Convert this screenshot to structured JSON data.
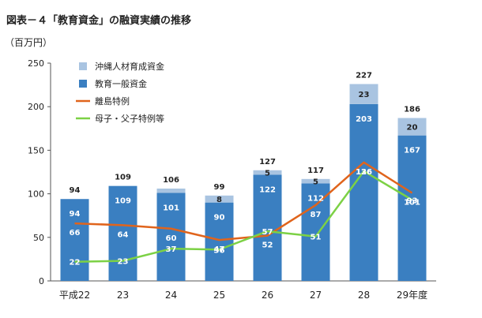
{
  "chart_data": {
    "type": "bar",
    "title": "図表－４「教育資金」の融資実績の推移",
    "ylabel": "（百万円）",
    "xlabel": "",
    "ylim": [
      0,
      250
    ],
    "yticks": [
      0,
      50,
      100,
      150,
      200,
      250
    ],
    "grid": false,
    "legend_position": "top-left",
    "categories": [
      "平成22",
      "23",
      "24",
      "25",
      "26",
      "27",
      "28",
      "29年度"
    ],
    "series": [
      {
        "name": "沖縄人材育成資金",
        "kind": "bar",
        "stack": "total",
        "color": "#a9c4e1",
        "values": [
          0,
          0,
          5,
          8,
          5,
          5,
          23,
          20
        ],
        "labels": [
          "",
          "",
          "",
          "8",
          "5",
          "5",
          "23",
          "20"
        ]
      },
      {
        "name": "教育一般資金",
        "kind": "bar",
        "stack": "total",
        "color": "#3a7fc1",
        "values": [
          94,
          109,
          101,
          90,
          122,
          112,
          203,
          167
        ],
        "labels": [
          "94",
          "109",
          "101",
          "90",
          "122",
          "112",
          "203",
          "167"
        ]
      },
      {
        "name": "離島特例",
        "kind": "line",
        "color": "#e0641c",
        "values": [
          66,
          64,
          60,
          47,
          52,
          87,
          136,
          101
        ],
        "labels": [
          "66",
          "64",
          "60",
          "47",
          "52",
          "87",
          "136",
          "101"
        ]
      },
      {
        "name": "母子・父子特例等",
        "kind": "line",
        "color": "#7cd145",
        "values": [
          22,
          23,
          37,
          36,
          57,
          51,
          126,
          93
        ],
        "labels": [
          "22",
          "23",
          "37",
          "36",
          "57",
          "51",
          "126",
          "93"
        ]
      }
    ],
    "totals": [
      94,
      109,
      106,
      99,
      127,
      117,
      227,
      186
    ]
  }
}
